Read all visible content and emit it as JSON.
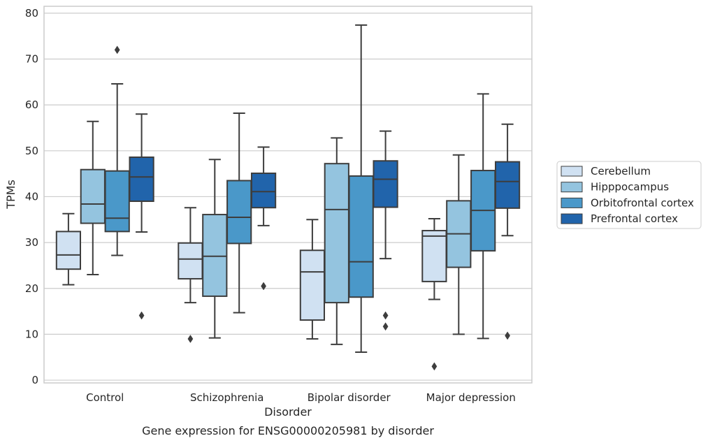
{
  "caption": "Gene expression for ENSG00000205981 by disorder",
  "chart_data": {
    "type": "box",
    "xlabel": "Disorder",
    "ylabel": "TPMs",
    "ylim": [
      -0.6,
      81.5
    ],
    "yticks": [
      0,
      10,
      20,
      30,
      40,
      50,
      60,
      70,
      80
    ],
    "categories": [
      "Control",
      "Schizophrenia",
      "Bipolar disorder",
      "Major depression"
    ],
    "grid": "horizontal",
    "legend_position": "right-outside",
    "series": [
      {
        "name": "Cerebellum",
        "color": "#d0e1f2",
        "boxes": [
          {
            "whisker_low": 20.8,
            "q1": 24.2,
            "median": 27.3,
            "q3": 32.4,
            "whisker_high": 36.3,
            "outliers": []
          },
          {
            "whisker_low": 16.9,
            "q1": 22.1,
            "median": 26.4,
            "q3": 29.9,
            "whisker_high": 37.6,
            "outliers": [
              9.0
            ]
          },
          {
            "whisker_low": 9.0,
            "q1": 13.1,
            "median": 23.6,
            "q3": 28.3,
            "whisker_high": 35.0,
            "outliers": []
          },
          {
            "whisker_low": 17.6,
            "q1": 21.5,
            "median": 31.4,
            "q3": 32.6,
            "whisker_high": 35.2,
            "outliers": [
              3.0
            ]
          }
        ]
      },
      {
        "name": "Hipppocampus",
        "color": "#94c4df",
        "boxes": [
          {
            "whisker_low": 23.0,
            "q1": 34.2,
            "median": 38.4,
            "q3": 45.9,
            "whisker_high": 56.4,
            "outliers": []
          },
          {
            "whisker_low": 9.2,
            "q1": 18.3,
            "median": 27.0,
            "q3": 36.1,
            "whisker_high": 48.1,
            "outliers": []
          },
          {
            "whisker_low": 7.8,
            "q1": 16.9,
            "median": 37.2,
            "q3": 47.2,
            "whisker_high": 52.8,
            "outliers": []
          },
          {
            "whisker_low": 10.0,
            "q1": 24.6,
            "median": 31.9,
            "q3": 39.1,
            "whisker_high": 49.1,
            "outliers": []
          }
        ]
      },
      {
        "name": "Orbitofrontal cortex",
        "color": "#4a98c9",
        "boxes": [
          {
            "whisker_low": 27.2,
            "q1": 32.4,
            "median": 35.3,
            "q3": 45.6,
            "whisker_high": 64.6,
            "outliers": [
              72.0
            ]
          },
          {
            "whisker_low": 14.7,
            "q1": 29.8,
            "median": 35.5,
            "q3": 43.5,
            "whisker_high": 58.2,
            "outliers": []
          },
          {
            "whisker_low": 6.1,
            "q1": 18.1,
            "median": 25.8,
            "q3": 44.5,
            "whisker_high": 77.4,
            "outliers": []
          },
          {
            "whisker_low": 9.1,
            "q1": 28.2,
            "median": 37.0,
            "q3": 45.7,
            "whisker_high": 62.4,
            "outliers": []
          }
        ]
      },
      {
        "name": "Prefrontal cortex",
        "color": "#2164ab",
        "boxes": [
          {
            "whisker_low": 32.3,
            "q1": 39.0,
            "median": 44.3,
            "q3": 48.6,
            "whisker_high": 58.0,
            "outliers": [
              14.1
            ]
          },
          {
            "whisker_low": 33.7,
            "q1": 37.6,
            "median": 41.1,
            "q3": 45.1,
            "whisker_high": 50.8,
            "outliers": [
              20.5
            ]
          },
          {
            "whisker_low": 26.5,
            "q1": 37.7,
            "median": 43.8,
            "q3": 47.8,
            "whisker_high": 54.3,
            "outliers": [
              14.1,
              11.7
            ]
          },
          {
            "whisker_low": 31.5,
            "q1": 37.5,
            "median": 43.3,
            "q3": 47.6,
            "whisker_high": 55.8,
            "outliers": [
              9.7
            ]
          }
        ]
      }
    ]
  }
}
